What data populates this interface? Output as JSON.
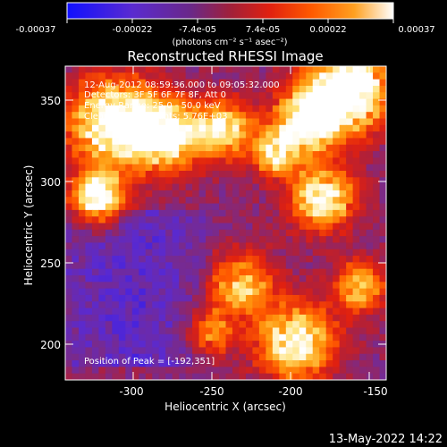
{
  "colorbar": {
    "ticks": [
      "-0.00037",
      "-0.00022",
      "-7.4e-05",
      "7.4e-05",
      "0.00022",
      "0.00037"
    ],
    "units": "(photons cm⁻² s⁻¹ asec⁻²)",
    "colormap": [
      "#1010ff",
      "#5a2ad0",
      "#7a2a8a",
      "#b0203a",
      "#e02010",
      "#ff5a00",
      "#ff9a10",
      "#ffe070",
      "#ffffff"
    ]
  },
  "image": {
    "title": "Reconstructed RHESSI Image",
    "info_lines": [
      "12-Aug-2012 08:59:36.000 to 09:05:32.000",
      "Detectors: 3F 5F 6F 7F 8F, Att 0",
      "Energy Range: 25.0 - 50.0 keV",
      "Clean     Total counts: 5.76E+03"
    ],
    "peak_label": "Position of Peak = [-192,351]",
    "x_ticks": [
      "-300",
      "-250",
      "-200",
      "-150"
    ],
    "y_ticks": [
      "350",
      "300",
      "250",
      "200"
    ],
    "xlabel": "Heliocentric X (arcsec)",
    "ylabel": "Heliocentric Y (arcsec)"
  },
  "footer": {
    "timestamp": "13-May-2022 14:22"
  }
}
